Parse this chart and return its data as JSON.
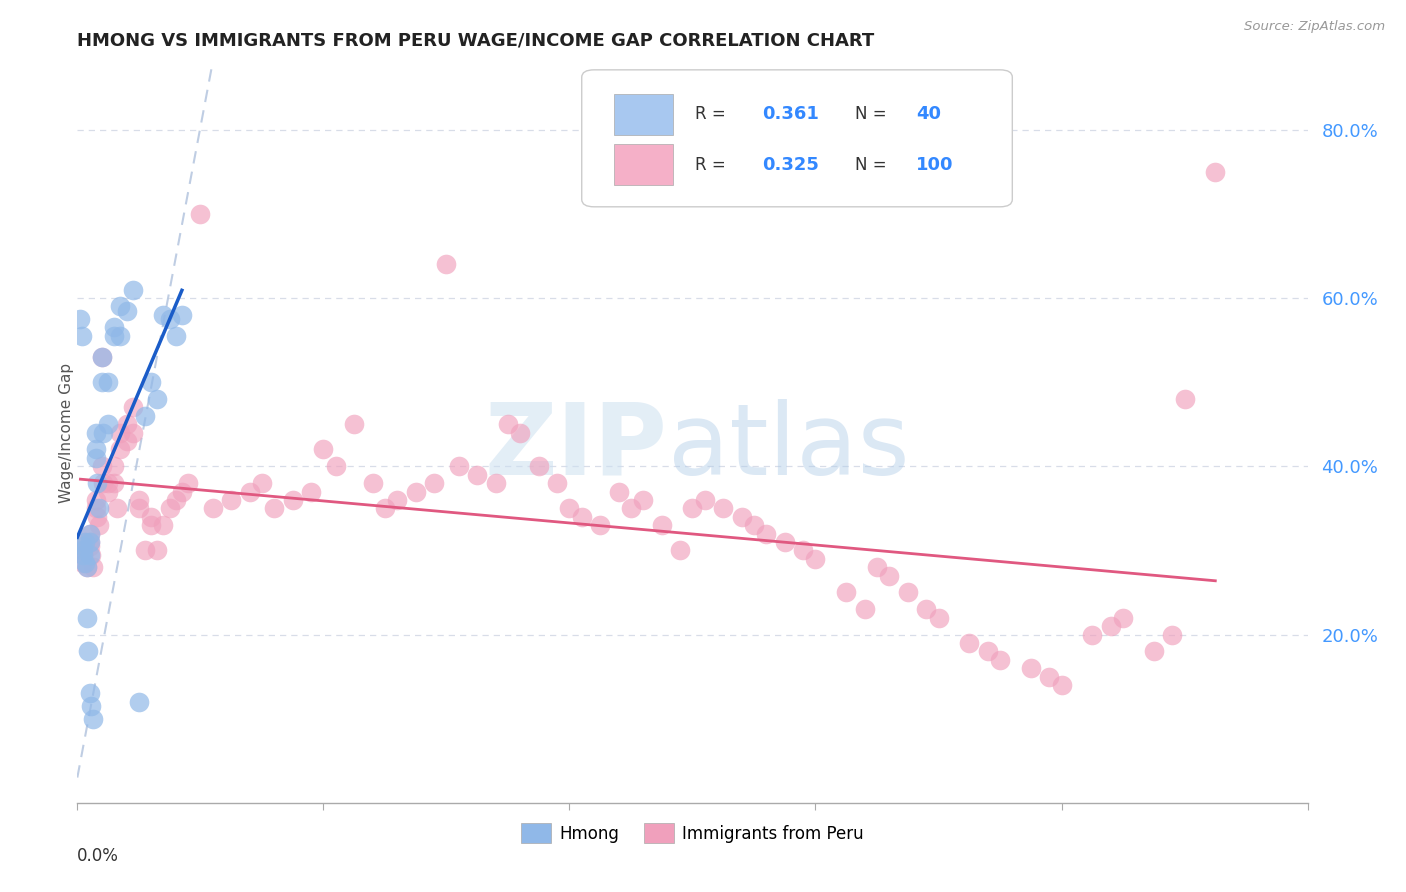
{
  "title": "HMONG VS IMMIGRANTS FROM PERU WAGE/INCOME GAP CORRELATION CHART",
  "source": "Source: ZipAtlas.com",
  "ylabel": "Wage/Income Gap",
  "yaxis_ticks": [
    "20.0%",
    "40.0%",
    "60.0%",
    "80.0%"
  ],
  "yaxis_tick_values": [
    0.2,
    0.4,
    0.6,
    0.8
  ],
  "legend_hmong": {
    "R": 0.361,
    "N": 40,
    "color": "#a8c8f0"
  },
  "legend_peru": {
    "R": 0.325,
    "N": 100,
    "color": "#f5b0c8"
  },
  "hmong_scatter_color": "#90b8e8",
  "peru_scatter_color": "#f0a0bc",
  "hmong_line_color": "#1a5cc8",
  "peru_line_color": "#e05880",
  "diagonal_color": "#b8c8e0",
  "background_color": "#ffffff",
  "grid_color": "#d8dde8",
  "xmin": 0.0,
  "xmax": 0.2,
  "ymin": 0.0,
  "ymax": 0.88,
  "hmong_x": [
    0.0005,
    0.0008,
    0.001,
    0.001,
    0.001,
    0.0012,
    0.0013,
    0.0015,
    0.0015,
    0.0018,
    0.002,
    0.002,
    0.002,
    0.002,
    0.0022,
    0.0025,
    0.003,
    0.003,
    0.003,
    0.0032,
    0.0035,
    0.004,
    0.004,
    0.0042,
    0.005,
    0.005,
    0.006,
    0.006,
    0.007,
    0.007,
    0.008,
    0.009,
    0.01,
    0.011,
    0.012,
    0.013,
    0.014,
    0.015,
    0.016,
    0.017
  ],
  "hmong_y": [
    0.575,
    0.555,
    0.295,
    0.3,
    0.305,
    0.31,
    0.285,
    0.28,
    0.22,
    0.18,
    0.32,
    0.31,
    0.295,
    0.13,
    0.115,
    0.1,
    0.44,
    0.42,
    0.41,
    0.38,
    0.35,
    0.53,
    0.5,
    0.44,
    0.5,
    0.45,
    0.565,
    0.555,
    0.59,
    0.555,
    0.585,
    0.61,
    0.12,
    0.46,
    0.5,
    0.48,
    0.58,
    0.575,
    0.555,
    0.58
  ],
  "peru_x": [
    0.0005,
    0.001,
    0.001,
    0.0012,
    0.0015,
    0.002,
    0.002,
    0.002,
    0.0022,
    0.0025,
    0.003,
    0.003,
    0.0032,
    0.0035,
    0.004,
    0.004,
    0.0042,
    0.005,
    0.005,
    0.006,
    0.006,
    0.0065,
    0.007,
    0.007,
    0.008,
    0.008,
    0.009,
    0.009,
    0.01,
    0.01,
    0.011,
    0.012,
    0.012,
    0.013,
    0.014,
    0.015,
    0.016,
    0.017,
    0.018,
    0.02,
    0.022,
    0.025,
    0.028,
    0.03,
    0.032,
    0.035,
    0.038,
    0.04,
    0.042,
    0.045,
    0.048,
    0.05,
    0.052,
    0.055,
    0.058,
    0.06,
    0.062,
    0.065,
    0.068,
    0.07,
    0.072,
    0.075,
    0.078,
    0.08,
    0.082,
    0.085,
    0.088,
    0.09,
    0.092,
    0.095,
    0.098,
    0.1,
    0.102,
    0.105,
    0.108,
    0.11,
    0.112,
    0.115,
    0.118,
    0.12,
    0.125,
    0.128,
    0.13,
    0.132,
    0.135,
    0.138,
    0.14,
    0.145,
    0.148,
    0.15,
    0.155,
    0.158,
    0.16,
    0.165,
    0.168,
    0.17,
    0.175,
    0.178,
    0.18,
    0.185
  ],
  "peru_y": [
    0.3,
    0.295,
    0.285,
    0.31,
    0.28,
    0.32,
    0.31,
    0.305,
    0.295,
    0.28,
    0.36,
    0.35,
    0.34,
    0.33,
    0.53,
    0.4,
    0.38,
    0.38,
    0.37,
    0.4,
    0.38,
    0.35,
    0.44,
    0.42,
    0.45,
    0.43,
    0.47,
    0.44,
    0.36,
    0.35,
    0.3,
    0.34,
    0.33,
    0.3,
    0.33,
    0.35,
    0.36,
    0.37,
    0.38,
    0.7,
    0.35,
    0.36,
    0.37,
    0.38,
    0.35,
    0.36,
    0.37,
    0.42,
    0.4,
    0.45,
    0.38,
    0.35,
    0.36,
    0.37,
    0.38,
    0.64,
    0.4,
    0.39,
    0.38,
    0.45,
    0.44,
    0.4,
    0.38,
    0.35,
    0.34,
    0.33,
    0.37,
    0.35,
    0.36,
    0.33,
    0.3,
    0.35,
    0.36,
    0.35,
    0.34,
    0.33,
    0.32,
    0.31,
    0.3,
    0.29,
    0.25,
    0.23,
    0.28,
    0.27,
    0.25,
    0.23,
    0.22,
    0.19,
    0.18,
    0.17,
    0.16,
    0.15,
    0.14,
    0.2,
    0.21,
    0.22,
    0.18,
    0.2,
    0.48,
    0.75
  ]
}
